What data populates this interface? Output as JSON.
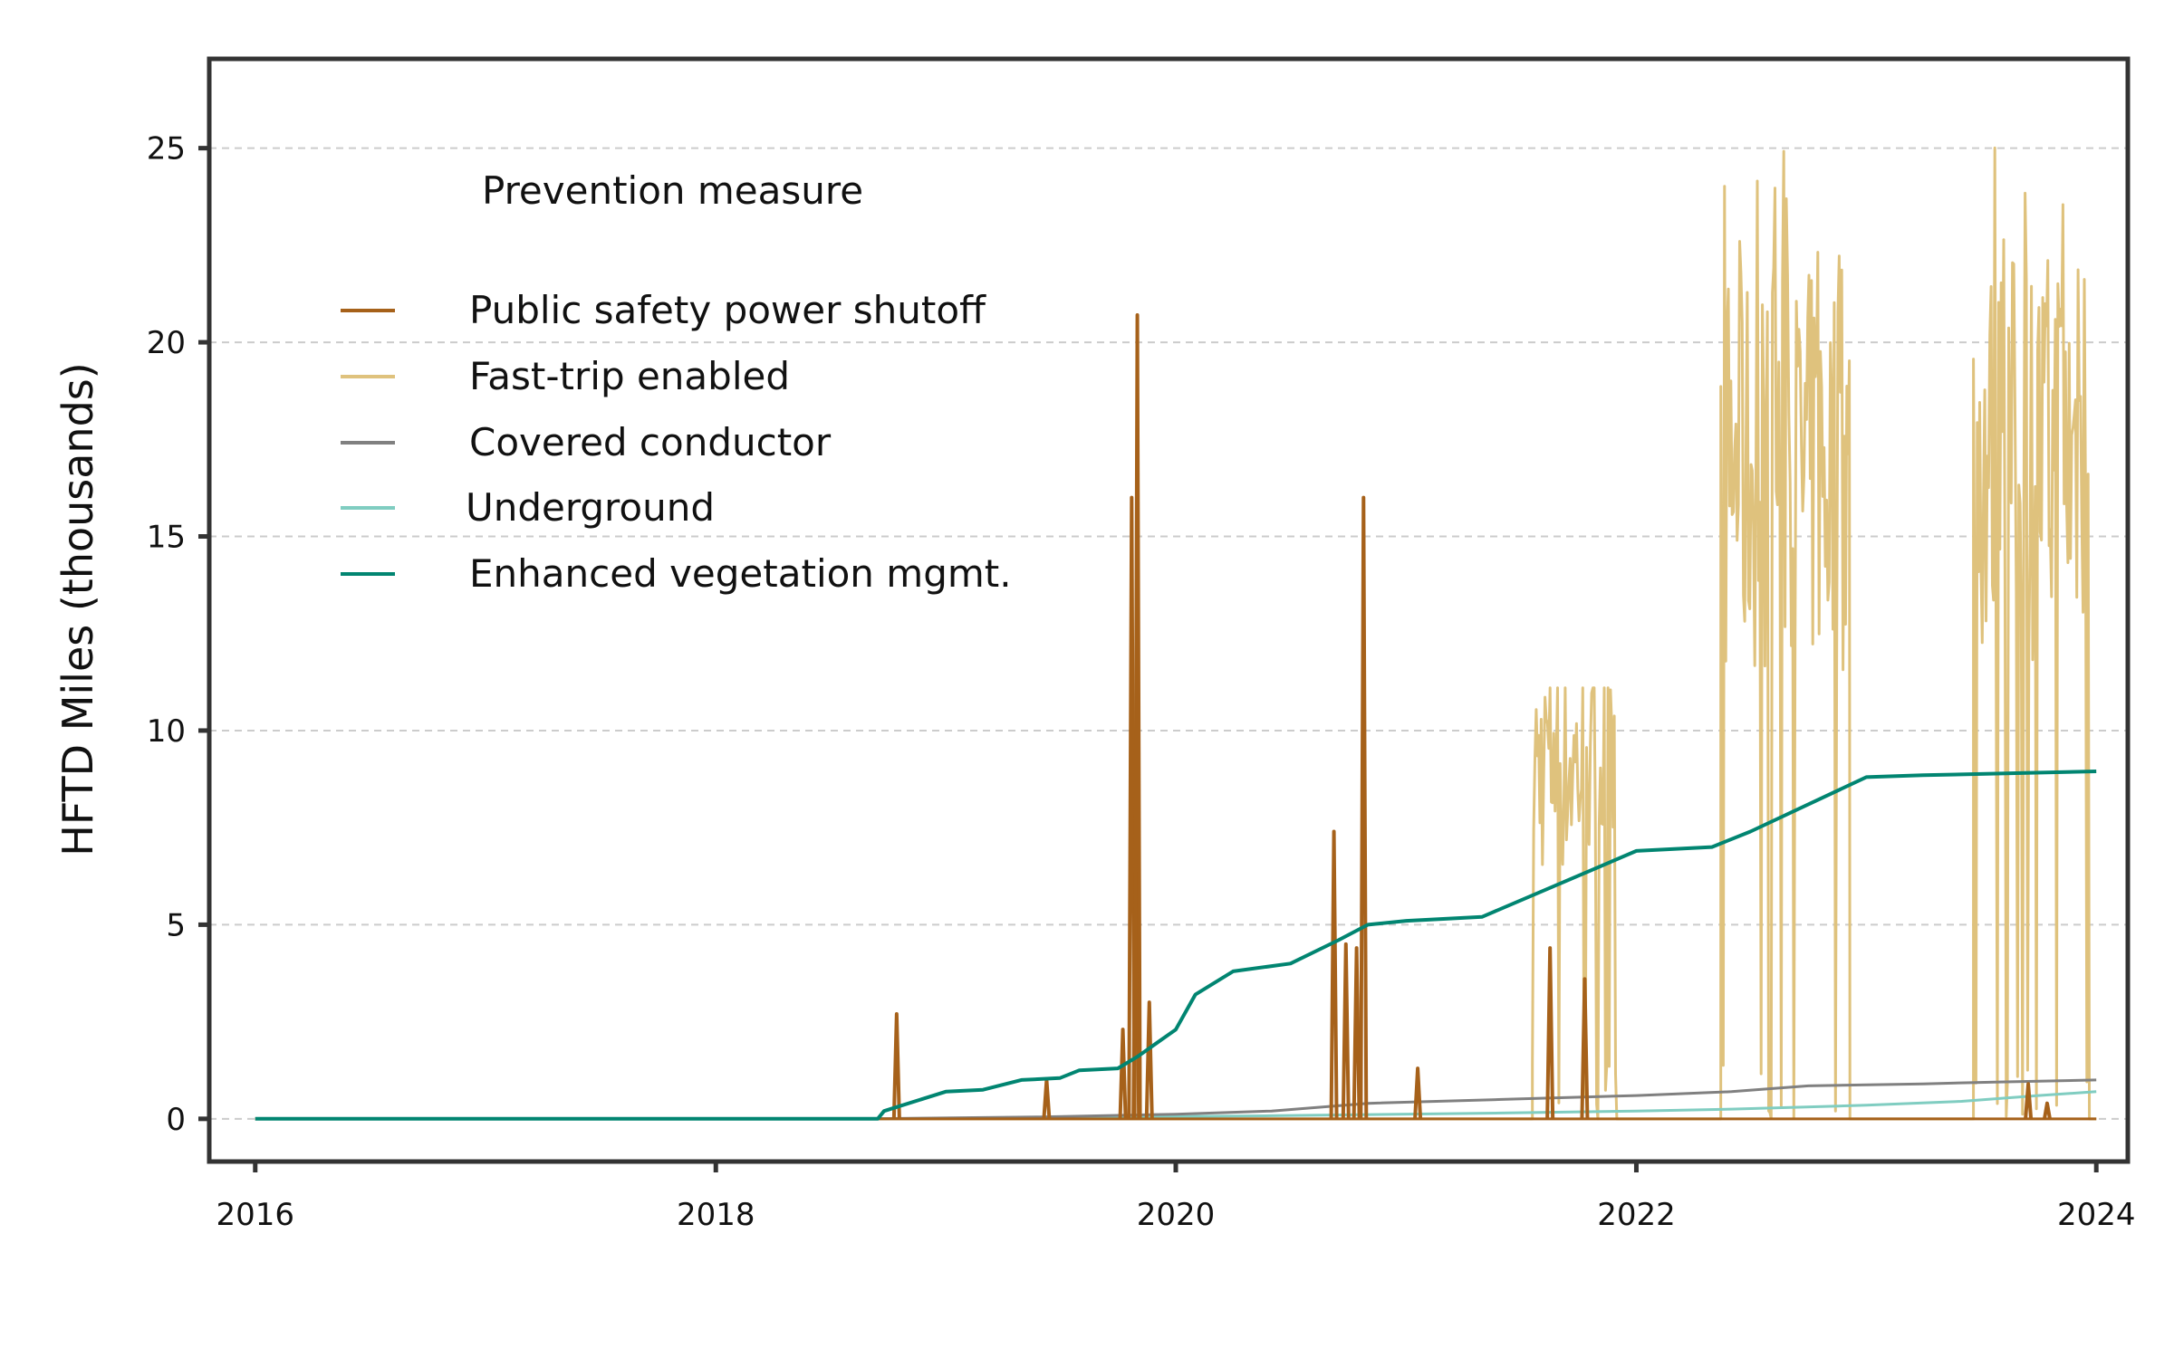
{
  "chart_data": {
    "type": "line",
    "title": "",
    "xlabel": "",
    "ylabel": "HFTD Miles (thousands)",
    "xlim": [
      "2015-10-20",
      "2024-02-20"
    ],
    "ylim": [
      -1.1,
      27.3
    ],
    "x_ticks": [
      "2016",
      "2018",
      "2020",
      "2022",
      "2024"
    ],
    "x_tick_dates": [
      "2016-01-01",
      "2018-01-01",
      "2020-01-01",
      "2022-01-01",
      "2024-01-01"
    ],
    "y_ticks": [
      0,
      5,
      10,
      15,
      20,
      25
    ],
    "y_tick_labels": [
      "0",
      "5",
      "10",
      "15",
      "20",
      "25"
    ],
    "grid": "horizontal dashed",
    "legend": {
      "title": "Prevention measure",
      "placement": "top-left"
    },
    "series": [
      {
        "name": "Public safety power shutoff",
        "color": "#a6611a",
        "baseline": [
          [
            "2016-01-01",
            0
          ],
          [
            "2024-01-01",
            0
          ]
        ],
        "spikes": [
          [
            "2018-10-15",
            2.7
          ],
          [
            "2019-06-10",
            1.0
          ],
          [
            "2019-10-09",
            2.3
          ],
          [
            "2019-10-23",
            16.0
          ],
          [
            "2019-10-30",
            8.4
          ],
          [
            "2019-11-01",
            20.7
          ],
          [
            "2019-11-20",
            3.0
          ],
          [
            "2020-09-08",
            7.4
          ],
          [
            "2020-09-27",
            4.5
          ],
          [
            "2020-10-14",
            4.4
          ],
          [
            "2020-10-25",
            16.0
          ],
          [
            "2021-01-19",
            1.3
          ],
          [
            "2021-08-17",
            4.4
          ],
          [
            "2021-10-11",
            3.6
          ],
          [
            "2023-09-15",
            0.9
          ],
          [
            "2023-10-15",
            0.4
          ]
        ]
      },
      {
        "name": "Fast-trip enabled",
        "color": "#dfc27d",
        "active_periods": [
          {
            "start": "2021-07-20",
            "end": "2021-11-30",
            "level": 10.4,
            "peak": 11.1
          },
          {
            "start": "2022-05-15",
            "end": "2022-12-05",
            "level": 19.0,
            "peak": 25.2
          },
          {
            "start": "2023-06-20",
            "end": "2023-12-20",
            "level": 19.5,
            "peak": 25.2
          }
        ]
      },
      {
        "name": "Covered conductor",
        "color": "#808080",
        "points": [
          [
            "2016-01-01",
            0
          ],
          [
            "2018-09-01",
            0
          ],
          [
            "2019-06-01",
            0.05
          ],
          [
            "2020-01-01",
            0.12
          ],
          [
            "2020-06-01",
            0.2
          ],
          [
            "2020-11-01",
            0.4
          ],
          [
            "2021-06-01",
            0.5
          ],
          [
            "2022-01-01",
            0.6
          ],
          [
            "2022-06-01",
            0.7
          ],
          [
            "2022-10-01",
            0.85
          ],
          [
            "2023-04-01",
            0.9
          ],
          [
            "2023-08-01",
            0.95
          ],
          [
            "2024-01-01",
            1.0
          ]
        ]
      },
      {
        "name": "Underground",
        "color": "#80cdc1",
        "points": [
          [
            "2016-01-01",
            0
          ],
          [
            "2018-09-01",
            0
          ],
          [
            "2019-06-01",
            0.03
          ],
          [
            "2020-06-01",
            0.08
          ],
          [
            "2021-06-01",
            0.15
          ],
          [
            "2022-01-01",
            0.2
          ],
          [
            "2022-06-01",
            0.25
          ],
          [
            "2023-01-01",
            0.35
          ],
          [
            "2023-06-01",
            0.45
          ],
          [
            "2023-10-01",
            0.6
          ],
          [
            "2024-01-01",
            0.7
          ]
        ]
      },
      {
        "name": "Enhanced vegetation mgmt.",
        "color": "#018571",
        "points": [
          [
            "2016-01-01",
            0
          ],
          [
            "2018-09-15",
            0
          ],
          [
            "2018-09-25",
            0.2
          ],
          [
            "2019-01-01",
            0.7
          ],
          [
            "2019-03-01",
            0.75
          ],
          [
            "2019-05-01",
            1.0
          ],
          [
            "2019-07-01",
            1.05
          ],
          [
            "2019-08-01",
            1.25
          ],
          [
            "2019-10-01",
            1.3
          ],
          [
            "2019-11-01",
            1.6
          ],
          [
            "2020-01-01",
            2.3
          ],
          [
            "2020-02-01",
            3.2
          ],
          [
            "2020-04-01",
            3.8
          ],
          [
            "2020-07-01",
            4.0
          ],
          [
            "2020-09-15",
            4.6
          ],
          [
            "2020-11-01",
            5.0
          ],
          [
            "2021-01-01",
            5.1
          ],
          [
            "2021-05-01",
            5.2
          ],
          [
            "2022-01-01",
            6.9
          ],
          [
            "2022-05-01",
            7.0
          ],
          [
            "2022-07-01",
            7.4
          ],
          [
            "2023-01-01",
            8.8
          ],
          [
            "2023-04-01",
            8.85
          ],
          [
            "2024-01-01",
            8.95
          ]
        ]
      }
    ]
  }
}
